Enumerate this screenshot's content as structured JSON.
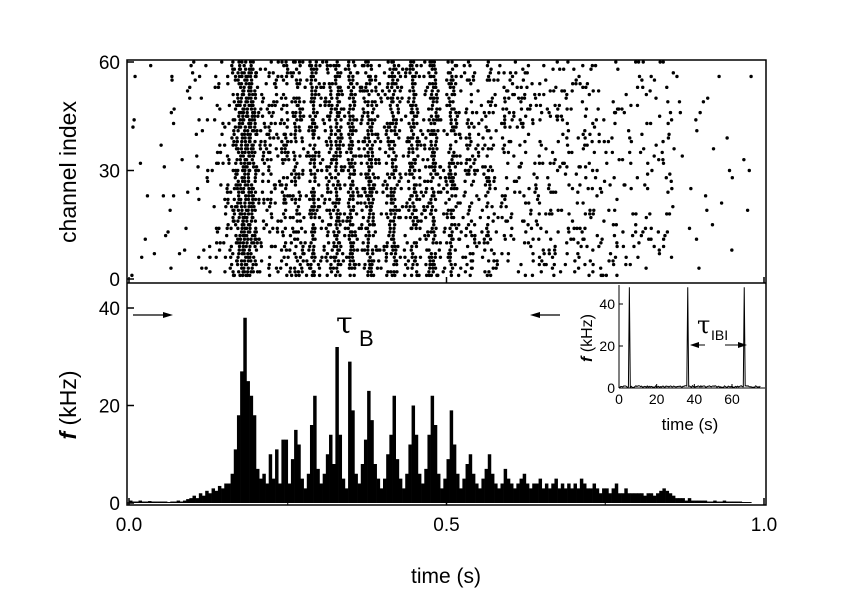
{
  "chart_data": [
    {
      "type": "scatter",
      "panel": "raster",
      "ylabel": "channel index",
      "ylim": [
        0,
        60
      ],
      "yticks": [
        "0",
        "30",
        "60"
      ],
      "xlim": [
        0,
        1
      ],
      "channels": 60,
      "marker": "dot"
    },
    {
      "type": "bar",
      "panel": "histogram",
      "xlabel": "time (s)",
      "ylabel_italic": "f",
      "ylabel_rest": " (kHz)",
      "xlim": [
        0,
        1
      ],
      "ylim": [
        0,
        45
      ],
      "xticks": [
        "0.0",
        "0.5",
        "1.0"
      ],
      "yticks": [
        "0",
        "20",
        "40"
      ],
      "bin_width": 0.005,
      "values": [
        0.5,
        0.3,
        0.3,
        0.5,
        0.3,
        0.3,
        0.4,
        0.3,
        0.3,
        0.3,
        0.3,
        0.3,
        0.2,
        0.3,
        0.3,
        0.5,
        0.3,
        0.5,
        0.8,
        1,
        1.5,
        1,
        2,
        1.5,
        2.5,
        2,
        3,
        2.5,
        3.5,
        3,
        4,
        4,
        6,
        11,
        18,
        27,
        38,
        25,
        22,
        18,
        7,
        5,
        6,
        4,
        10,
        5,
        11,
        4,
        13,
        13,
        4,
        9,
        15,
        12,
        5,
        3,
        6,
        16,
        22,
        7,
        4,
        6,
        10,
        14,
        8,
        32,
        14,
        5,
        3,
        29,
        19,
        6,
        4,
        8,
        13,
        23,
        17,
        8,
        5,
        3,
        5,
        10,
        14,
        22,
        9,
        5,
        3,
        6,
        12,
        20,
        14,
        6,
        4,
        7,
        14,
        22,
        16,
        6,
        3,
        5,
        9,
        19,
        12,
        6,
        3,
        5,
        8,
        10,
        6,
        4,
        3,
        5,
        7,
        10,
        6,
        4,
        3,
        4,
        7,
        5,
        4,
        3,
        4,
        5,
        6,
        4,
        3,
        4,
        4,
        5,
        3,
        4,
        3,
        4,
        5,
        3,
        4,
        3,
        4,
        3,
        4,
        3,
        5,
        4,
        3,
        3,
        4,
        3,
        2,
        3,
        3,
        2,
        3,
        4,
        2,
        2,
        3,
        2,
        2,
        2,
        2,
        2,
        1.5,
        2,
        2,
        1.5,
        2,
        2.5,
        3,
        2.5,
        2,
        1.5,
        1,
        1,
        1,
        0.5,
        1,
        0.5,
        0.5,
        0.5,
        0.5,
        0.5,
        0.3,
        0.3,
        0.5,
        0.3,
        0.3,
        0.5,
        0.3,
        0.3,
        0.3,
        0.3,
        0.3,
        0.2,
        0.2,
        0.2,
        0,
        0,
        0,
        0
      ],
      "annotation": {
        "symbol": "τ",
        "subscript": "B"
      }
    },
    {
      "type": "line",
      "panel": "inset",
      "xlabel": "time (s)",
      "ylabel_italic": "f",
      "ylabel_rest": " (kHz)",
      "xlim": [
        0,
        75
      ],
      "ylim": [
        0,
        48
      ],
      "xticks": [
        "0",
        "20",
        "40",
        "60"
      ],
      "yticks": [
        "0",
        "20",
        "40"
      ],
      "burst_times": [
        5.5,
        36.5,
        66.5
      ],
      "annotation": {
        "symbol": "τ",
        "subscript": "IBI"
      }
    }
  ]
}
